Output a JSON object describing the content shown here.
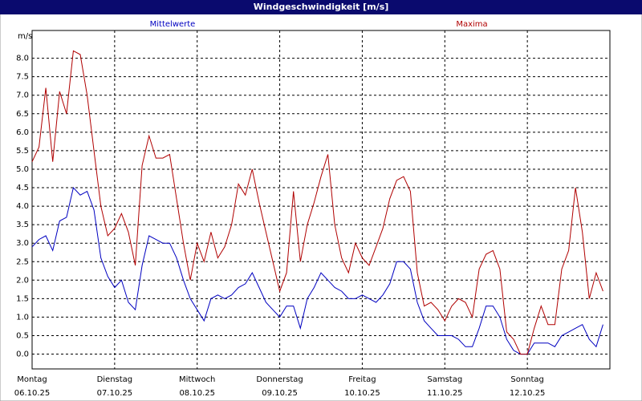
{
  "chart_data": {
    "type": "line",
    "title": "Windgeschwindigkeit [m/s]",
    "y_label": "m/s",
    "x": [
      0,
      2,
      4,
      6,
      8,
      10,
      12,
      14,
      16,
      18,
      20,
      22,
      24,
      26,
      28,
      30,
      32,
      34,
      36,
      38,
      40,
      42,
      44,
      46,
      48,
      50,
      52,
      54,
      56,
      58,
      60,
      62,
      64,
      66,
      68,
      70,
      72,
      74,
      76,
      78,
      80,
      82,
      84,
      86,
      88,
      90,
      92,
      94,
      96,
      98,
      100,
      102,
      104,
      106,
      108,
      110,
      112,
      114,
      116,
      118,
      120,
      122,
      124,
      126,
      128,
      130,
      132,
      134,
      136,
      138,
      140,
      142,
      144,
      146,
      148,
      150,
      152,
      154,
      156,
      158,
      160,
      162,
      164,
      166
    ],
    "xlim": [
      0,
      168
    ],
    "xticks": [
      {
        "value": 0,
        "label": "Montag",
        "date": "06.10.25"
      },
      {
        "value": 24,
        "label": "Dienstag",
        "date": "07.10.25"
      },
      {
        "value": 48,
        "label": "Mittwoch",
        "date": "08.10.25"
      },
      {
        "value": 72,
        "label": "Donnerstag",
        "date": "09.10.25"
      },
      {
        "value": 96,
        "label": "Freitag",
        "date": "10.10.25"
      },
      {
        "value": 120,
        "label": "Samstag",
        "date": "11.10.25"
      },
      {
        "value": 144,
        "label": "Sonntag",
        "date": "12.10.25"
      }
    ],
    "ylim": [
      -0.4,
      8.75
    ],
    "yticks": [
      {
        "value": 0,
        "label": "0.0"
      },
      0.5,
      {
        "value": 1,
        "label": "1.0"
      },
      1.5,
      {
        "value": 2,
        "label": "2.0"
      },
      2.5,
      {
        "value": 3,
        "label": "3.0"
      },
      3.5,
      {
        "value": 4,
        "label": "4.0"
      },
      4.5,
      {
        "value": 5,
        "label": "5.0"
      },
      5.5,
      {
        "value": 6,
        "label": "6.0"
      },
      6.5,
      {
        "value": 7,
        "label": "7.0"
      },
      7.5,
      {
        "value": 8,
        "label": "8.0"
      }
    ],
    "grid": true,
    "series": [
      {
        "name": "Mittelwerte",
        "color": "#0000c0",
        "values": [
          2.9,
          3.1,
          3.2,
          2.8,
          3.6,
          3.7,
          4.5,
          4.3,
          4.4,
          3.9,
          2.6,
          2.1,
          1.8,
          2.0,
          1.4,
          1.2,
          2.4,
          3.2,
          3.1,
          3.0,
          3.0,
          2.6,
          2.0,
          1.5,
          1.2,
          0.9,
          1.5,
          1.6,
          1.5,
          1.6,
          1.8,
          1.9,
          2.2,
          1.8,
          1.4,
          1.2,
          1.0,
          1.3,
          1.3,
          0.7,
          1.5,
          1.8,
          2.2,
          2.0,
          1.8,
          1.7,
          1.5,
          1.5,
          1.6,
          1.5,
          1.4,
          1.6,
          1.9,
          2.5,
          2.5,
          2.3,
          1.4,
          0.9,
          0.7,
          0.5,
          0.5,
          0.5,
          0.4,
          0.2,
          0.2,
          0.7,
          1.3,
          1.3,
          1.0,
          0.4,
          0.1,
          0.0,
          0.0,
          0.3,
          0.3,
          0.3,
          0.2,
          0.5,
          0.6,
          0.7,
          0.8,
          0.4,
          0.2,
          0.8
        ]
      },
      {
        "name": "Maxima",
        "color": "#b00000",
        "values": [
          5.2,
          5.6,
          7.2,
          5.2,
          7.1,
          6.5,
          8.2,
          8.1,
          7.0,
          5.5,
          4.0,
          3.2,
          3.4,
          3.8,
          3.3,
          2.4,
          5.1,
          5.9,
          5.3,
          5.3,
          5.4,
          4.2,
          3.0,
          2.0,
          3.0,
          2.5,
          3.3,
          2.6,
          2.9,
          3.5,
          4.6,
          4.3,
          5.0,
          4.1,
          3.3,
          2.5,
          1.7,
          2.2,
          4.4,
          2.5,
          3.5,
          4.1,
          4.8,
          5.4,
          3.5,
          2.6,
          2.2,
          3.0,
          2.6,
          2.4,
          2.9,
          3.4,
          4.2,
          4.7,
          4.8,
          4.4,
          2.2,
          1.3,
          1.4,
          1.2,
          0.9,
          1.3,
          1.5,
          1.4,
          1.0,
          2.3,
          2.7,
          2.8,
          2.3,
          0.6,
          0.4,
          0.0,
          0.0,
          0.7,
          1.3,
          0.8,
          0.8,
          2.3,
          2.8,
          4.5,
          3.3,
          1.5,
          2.2,
          1.7
        ]
      }
    ]
  }
}
